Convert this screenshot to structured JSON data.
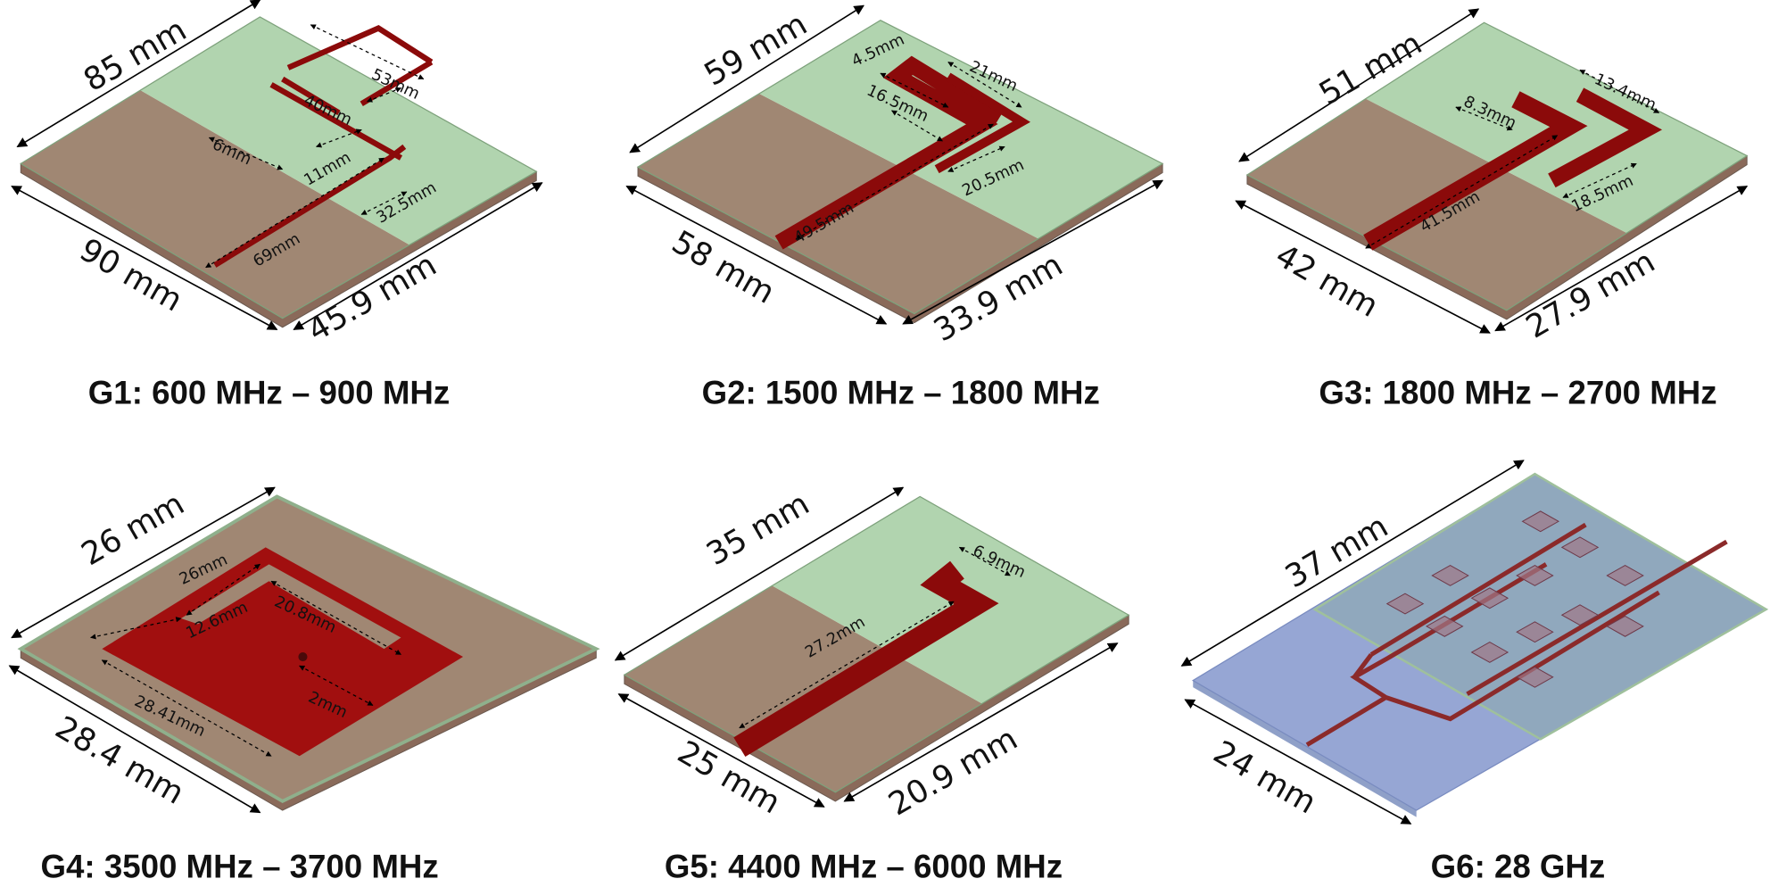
{
  "panels": [
    {
      "caption": "G1: 600 MHz – 900 MHz",
      "dimensions": [
        "85 mm",
        "90 mm",
        "45.9 mm",
        "53mm",
        "40mm",
        "6mm",
        "11mm",
        "32.5mm",
        "69mm"
      ]
    },
    {
      "caption": "G2: 1500 MHz – 1800 MHz",
      "dimensions": [
        "59 mm",
        "58 mm",
        "33.9 mm",
        "4.5mm",
        "16.5mm",
        "21mm",
        "20.5mm",
        "49.5mm"
      ]
    },
    {
      "caption": "G3: 1800 MHz – 2700 MHz",
      "dimensions": [
        "51 mm",
        "42 mm",
        "27.9 mm",
        "8.3mm",
        "13.4mm",
        "18.5mm",
        "41.5mm"
      ]
    },
    {
      "caption": "G4: 3500 MHz – 3700 MHz",
      "dimensions": [
        "26 mm",
        "28.4 mm",
        "26mm",
        "12.6mm",
        "20.8mm",
        "2mm",
        "28.41mm"
      ]
    },
    {
      "caption": "G5: 4400 MHz – 6000 MHz",
      "dimensions": [
        "35 mm",
        "25 mm",
        "20.9 mm",
        "6.9mm",
        "27.2mm"
      ]
    },
    {
      "caption": "G6: 28 GHz",
      "dimensions": [
        "37 mm",
        "24 mm"
      ]
    }
  ]
}
